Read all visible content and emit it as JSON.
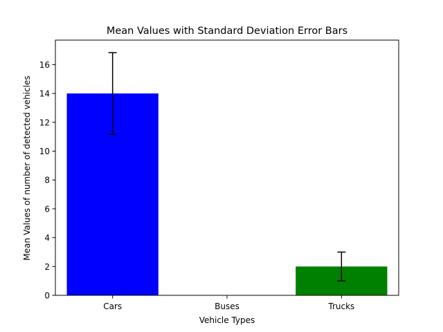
{
  "chart_data": {
    "type": "bar",
    "title": "Mean Values with Standard Deviation Error Bars",
    "xlabel": "Vehicle Types",
    "ylabel": "Mean Values of number of detected vehicles",
    "categories": [
      "Cars",
      "Buses",
      "Trucks"
    ],
    "values": [
      14,
      0,
      2
    ],
    "errors": [
      2.83,
      0,
      1
    ],
    "bar_colors": [
      "#0000ff",
      "#0000ff",
      "#008000"
    ],
    "ylim": [
      0,
      17.7
    ],
    "yticks": [
      0,
      2,
      4,
      6,
      8,
      10,
      12,
      14,
      16
    ],
    "grid": false,
    "legend": "none"
  }
}
